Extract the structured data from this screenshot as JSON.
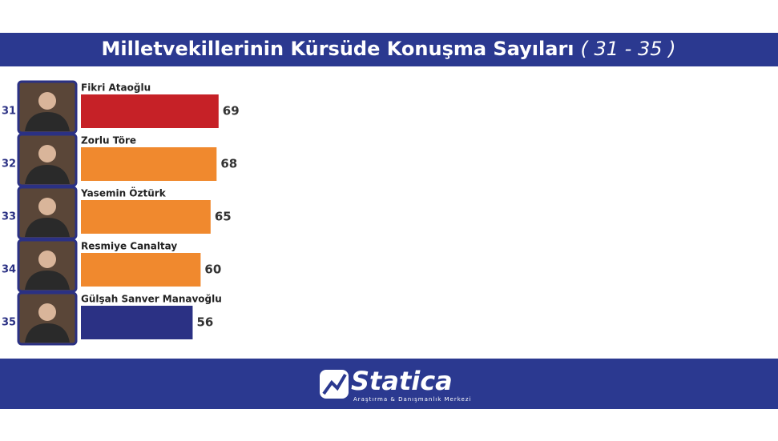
{
  "chart_data": {
    "type": "bar",
    "orientation": "horizontal",
    "title": "Milletvekillerinin Kürsüde Konuşma Sayıları",
    "title_range": "( 31 - 35 )",
    "ranks": [
      "31",
      "32",
      "33",
      "34",
      "35"
    ],
    "categories": [
      "Fikri Ataoğlu",
      "Zorlu Töre",
      "Yasemin Öztürk",
      "Resmiye Canaltay",
      "Gülşah Sanver Manavoğlu"
    ],
    "values": [
      69,
      68,
      65,
      60,
      56
    ],
    "colors": [
      "#c62127",
      "#f0892e",
      "#f0892e",
      "#f0892e",
      "#2b3184"
    ]
  },
  "footer": {
    "brand": "Statica",
    "tagline": "Araştırma & Danışmanlık Merkezi"
  }
}
